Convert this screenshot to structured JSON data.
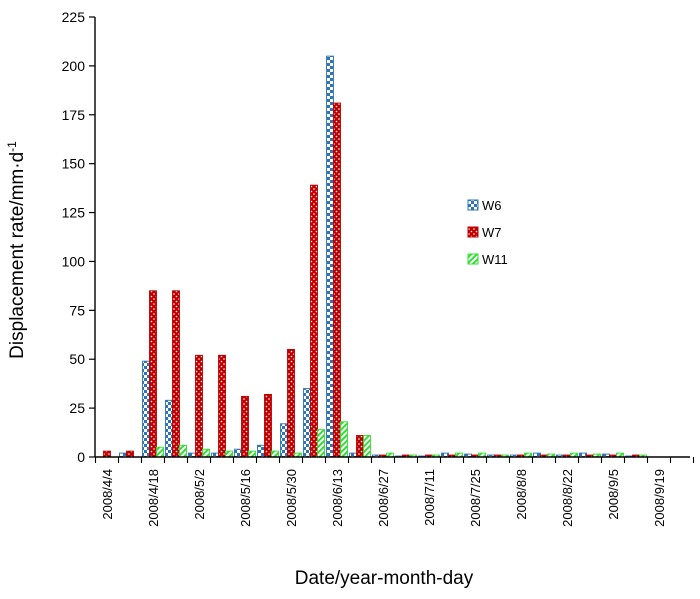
{
  "chart_data": {
    "type": "bar",
    "ylabel": "Displacement rate/mm·d",
    "ylabel_superscript": "-1",
    "xlabel": "Date/year-month-day",
    "ylim": [
      0,
      225
    ],
    "yticks": [
      0,
      25,
      50,
      75,
      100,
      125,
      150,
      175,
      200,
      225
    ],
    "grid": false,
    "legend_position": "right",
    "tick_labels": [
      "2008/4/4",
      "2008/4/18",
      "2008/5/2",
      "2008/5/16",
      "2008/5/30",
      "2008/6/13",
      "2008/6/27",
      "2008/7/11",
      "2008/7/25",
      "2008/8/8",
      "2008/8/22",
      "2008/9/5",
      "2008/9/19"
    ],
    "categories": [
      "2008/4/4",
      "2008/4/11",
      "2008/4/18",
      "2008/4/25",
      "2008/5/2",
      "2008/5/9",
      "2008/5/16",
      "2008/5/23",
      "2008/5/30",
      "2008/6/6",
      "2008/6/13",
      "2008/6/20",
      "2008/6/27",
      "2008/7/4",
      "2008/7/11",
      "2008/7/18",
      "2008/7/25",
      "2008/8/1",
      "2008/8/8",
      "2008/8/15",
      "2008/8/22",
      "2008/8/29",
      "2008/9/5",
      "2008/9/12",
      "2008/9/19",
      "2008/9/26"
    ],
    "series": [
      {
        "name": "W6",
        "color": "#2e75b6",
        "pattern": "checker",
        "values": [
          0,
          2,
          49,
          29,
          2,
          2,
          4,
          6,
          17,
          35,
          205,
          2,
          1,
          0.5,
          0.5,
          2,
          1.5,
          1,
          1,
          2,
          1,
          2,
          1.5,
          0.5,
          0,
          0
        ]
      },
      {
        "name": "W7",
        "color": "#c00000",
        "pattern": "dots",
        "values": [
          3,
          3,
          85,
          85,
          52,
          52,
          31,
          32,
          55,
          139,
          181,
          11,
          1,
          1,
          1,
          1,
          1,
          1,
          1,
          1,
          1,
          1,
          1,
          1,
          0,
          0
        ]
      },
      {
        "name": "W11",
        "color": "#33dd33",
        "pattern": "stripes",
        "values": [
          0,
          0,
          5,
          6,
          4,
          3,
          3,
          3,
          2,
          14,
          18,
          11,
          2,
          1,
          1,
          2,
          2,
          1,
          2,
          1.5,
          2,
          1.5,
          2,
          1,
          0,
          0
        ]
      }
    ]
  }
}
